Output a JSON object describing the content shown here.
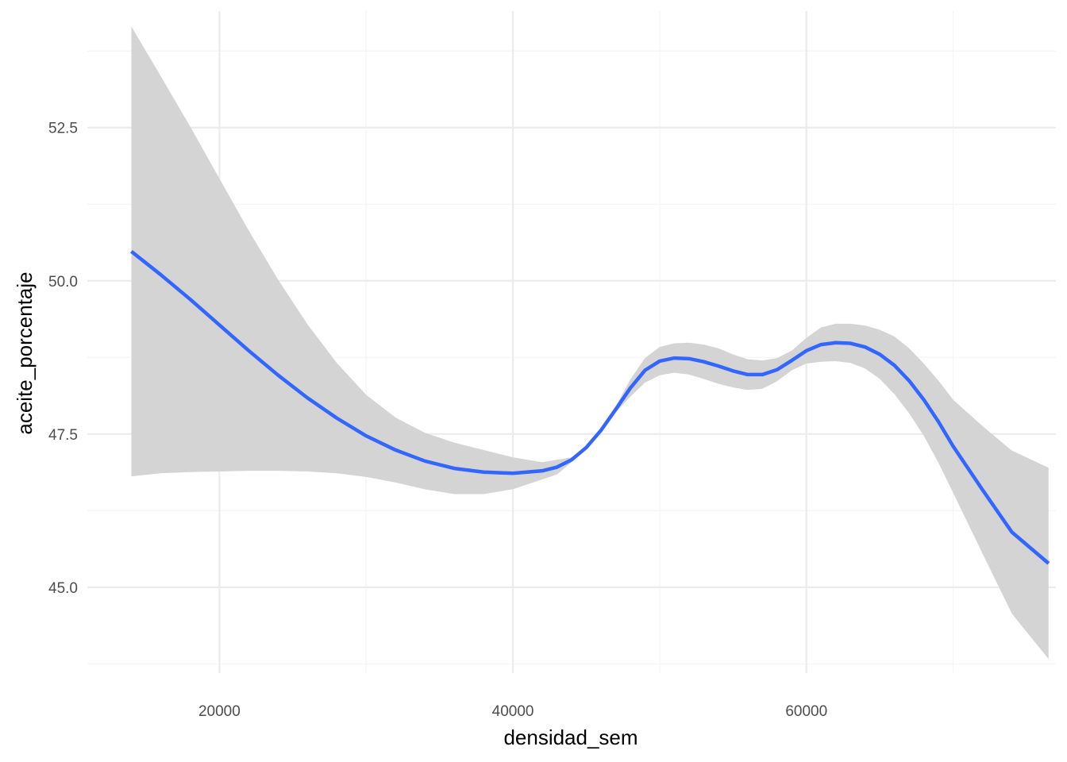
{
  "chart_data": {
    "type": "line",
    "title": "",
    "xlabel": "densidad_sem",
    "ylabel": "aceite_porcentaje",
    "xlim": [
      11000,
      77000
    ],
    "ylim": [
      43.6,
      54.4
    ],
    "x_ticks": [
      20000,
      40000,
      60000
    ],
    "x_tick_labels": [
      "20000",
      "40000",
      "60000"
    ],
    "x_minor_ticks": [
      30000,
      50000,
      70000
    ],
    "y_ticks": [
      45.0,
      47.5,
      50.0,
      52.5
    ],
    "y_tick_labels": [
      "45.0",
      "47.5",
      "50.0",
      "52.5"
    ],
    "y_minor_ticks": [
      43.75,
      46.25,
      48.75,
      51.25,
      53.75
    ],
    "grid": true,
    "legend": "none",
    "colors": {
      "line": "#3366ff",
      "ribbon": "#d4d4d4",
      "grid_major": "#ebebeb",
      "grid_minor": "#f4f4f4"
    },
    "series": [
      {
        "x": [
          14000,
          16000,
          18000,
          20000,
          22000,
          24000,
          26000,
          28000,
          30000,
          32000,
          34000,
          36000,
          38000,
          40000,
          42000,
          43000,
          44000,
          45000,
          46000,
          47000,
          48000,
          49000,
          50000,
          51000,
          52000,
          53000,
          54000,
          55000,
          56000,
          57000,
          58000,
          59000,
          60000,
          61000,
          62000,
          63000,
          64000,
          65000,
          66000,
          67000,
          68000,
          69000,
          70000,
          72000,
          74000,
          76500
        ],
        "y": [
          50.48,
          50.1,
          49.7,
          49.28,
          48.86,
          48.46,
          48.09,
          47.76,
          47.47,
          47.24,
          47.06,
          46.94,
          46.88,
          46.86,
          46.9,
          46.96,
          47.08,
          47.28,
          47.56,
          47.9,
          48.25,
          48.54,
          48.69,
          48.74,
          48.73,
          48.68,
          48.61,
          48.53,
          48.47,
          48.47,
          48.55,
          48.7,
          48.86,
          48.96,
          48.99,
          48.98,
          48.92,
          48.8,
          48.62,
          48.37,
          48.06,
          47.7,
          47.3,
          46.59,
          45.9,
          45.39
        ],
        "ymin": [
          46.81,
          46.86,
          46.88,
          46.89,
          46.9,
          46.9,
          46.89,
          46.86,
          46.8,
          46.71,
          46.6,
          46.52,
          46.52,
          46.6,
          46.76,
          46.84,
          47.04,
          47.28,
          47.56,
          47.85,
          48.11,
          48.34,
          48.46,
          48.5,
          48.47,
          48.4,
          48.32,
          48.26,
          48.22,
          48.24,
          48.36,
          48.54,
          48.65,
          48.68,
          48.69,
          48.66,
          48.57,
          48.4,
          48.15,
          47.84,
          47.47,
          47.03,
          46.54,
          45.55,
          44.57,
          43.83
        ],
        "ymax": [
          54.15,
          53.34,
          52.52,
          51.67,
          50.82,
          50.02,
          49.29,
          48.66,
          48.14,
          47.77,
          47.52,
          47.36,
          47.24,
          47.12,
          47.04,
          47.08,
          47.12,
          47.28,
          47.56,
          47.95,
          48.39,
          48.74,
          48.92,
          48.98,
          48.99,
          48.96,
          48.9,
          48.8,
          48.72,
          48.7,
          48.74,
          48.86,
          49.07,
          49.24,
          49.3,
          49.3,
          49.27,
          49.2,
          49.09,
          48.9,
          48.65,
          48.37,
          48.06,
          47.63,
          47.23,
          46.95
        ]
      }
    ]
  }
}
